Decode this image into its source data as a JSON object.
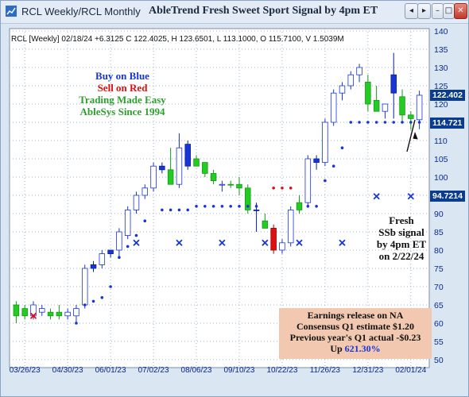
{
  "window": {
    "title": "RCL Weekly/RCL Monthly",
    "chart_title": "AbleTrend Fresh Sweet Sport Signal by 4pm ET",
    "controls": {
      "left": "◂",
      "right": "▸",
      "minimize": "–",
      "maximize": "□",
      "close": "✕"
    }
  },
  "info_line": "RCL [Weekly] 02/18/24  +6.3125 C 122.4025, H 123.6501, L 113.1000, O 115.7100, V 1.5039M",
  "ad": {
    "line1": "Buy on Blue",
    "line2": "Sell on Red",
    "line3": "Trading Made Easy",
    "line4": "AbleSys Since 1994"
  },
  "colors": {
    "blue": "#1a35d6",
    "red": "#e01010",
    "green": "#2e9e2e",
    "candle_up": "#ffffff",
    "candle_blue": "#1a35d6",
    "candle_red": "#e01010",
    "candle_green": "#22cc22"
  },
  "annotation": {
    "line1": "Fresh",
    "line2": "SSb signal",
    "line3": "by 4pm ET",
    "line4": "on 2/22/24"
  },
  "earnings": {
    "line1": "Earnings release on NA",
    "line2": "Consensus Q1 estimate $1.20",
    "line3": "Previous year's Q1 actual -$0.23",
    "line4_prefix": "Up ",
    "line4_value": "621.30%"
  },
  "price_tags": {
    "last": "122.402",
    "stop": "114.721",
    "x_level": "94.7214"
  },
  "chart_data": {
    "type": "candlestick",
    "symbol": "RCL",
    "period": "Weekly",
    "ylim": [
      50,
      140
    ],
    "y_ticks": [
      50,
      55,
      60,
      65,
      70,
      75,
      80,
      85,
      90,
      95,
      100,
      105,
      110,
      115,
      120,
      125,
      130,
      135,
      140
    ],
    "x_ticks": [
      "03/26/23",
      "04/30/23",
      "06/01/23",
      "07/02/23",
      "08/06/23",
      "09/10/23",
      "10/22/23",
      "11/26/23",
      "12/31/23",
      "02/01/24"
    ],
    "candles": [
      {
        "o": 62,
        "h": 66,
        "l": 60,
        "c": 65,
        "color": "green"
      },
      {
        "o": 64,
        "h": 65,
        "l": 61,
        "c": 62,
        "color": "green"
      },
      {
        "o": 62,
        "h": 66,
        "l": 61,
        "c": 65,
        "color": "white"
      },
      {
        "o": 64,
        "h": 65,
        "l": 62,
        "c": 63,
        "color": "white"
      },
      {
        "o": 62,
        "h": 64,
        "l": 61,
        "c": 63,
        "color": "green"
      },
      {
        "o": 63,
        "h": 65,
        "l": 61,
        "c": 62,
        "color": "green"
      },
      {
        "o": 62,
        "h": 64,
        "l": 61,
        "c": 63,
        "color": "white"
      },
      {
        "o": 64,
        "h": 65,
        "l": 60,
        "c": 62,
        "color": "white"
      },
      {
        "o": 65,
        "h": 76,
        "l": 64,
        "c": 75,
        "color": "white"
      },
      {
        "o": 75,
        "h": 77,
        "l": 74,
        "c": 76,
        "color": "blue"
      },
      {
        "o": 76,
        "h": 80,
        "l": 75,
        "c": 79,
        "color": "white"
      },
      {
        "o": 79,
        "h": 80,
        "l": 78,
        "c": 80,
        "color": "blue"
      },
      {
        "o": 80,
        "h": 86,
        "l": 78,
        "c": 85,
        "color": "white"
      },
      {
        "o": 84,
        "h": 92,
        "l": 83,
        "c": 91,
        "color": "white"
      },
      {
        "o": 91,
        "h": 96,
        "l": 90,
        "c": 95,
        "color": "white"
      },
      {
        "o": 95,
        "h": 98,
        "l": 94,
        "c": 97,
        "color": "white"
      },
      {
        "o": 97,
        "h": 104,
        "l": 96,
        "c": 103,
        "color": "white"
      },
      {
        "o": 103,
        "h": 104,
        "l": 101,
        "c": 102,
        "color": "blue"
      },
      {
        "o": 102,
        "h": 108,
        "l": 98,
        "c": 98,
        "color": "green"
      },
      {
        "o": 98,
        "h": 112,
        "l": 97,
        "c": 108,
        "color": "white"
      },
      {
        "o": 103,
        "h": 110,
        "l": 102,
        "c": 109,
        "color": "blue"
      },
      {
        "o": 105,
        "h": 106,
        "l": 103,
        "c": 103,
        "color": "green"
      },
      {
        "o": 104,
        "h": 104,
        "l": 100,
        "c": 101,
        "color": "green"
      },
      {
        "o": 101,
        "h": 102,
        "l": 98,
        "c": 99,
        "color": "green"
      },
      {
        "o": 98,
        "h": 99,
        "l": 96,
        "c": 98,
        "color": "white"
      },
      {
        "o": 98,
        "h": 99,
        "l": 97,
        "c": 98,
        "color": "green"
      },
      {
        "o": 98,
        "h": 100,
        "l": 95,
        "c": 97,
        "color": "green"
      },
      {
        "o": 97,
        "h": 98,
        "l": 90,
        "c": 91,
        "color": "green"
      },
      {
        "o": 91,
        "h": 93,
        "l": 85,
        "c": 91,
        "color": "blue"
      },
      {
        "o": 88,
        "h": 90,
        "l": 86,
        "c": 86,
        "color": "green"
      },
      {
        "o": 86,
        "h": 87,
        "l": 79,
        "c": 80,
        "color": "red"
      },
      {
        "o": 80,
        "h": 83,
        "l": 79,
        "c": 82,
        "color": "white"
      },
      {
        "o": 82,
        "h": 92,
        "l": 81,
        "c": 91,
        "color": "white"
      },
      {
        "o": 91,
        "h": 95,
        "l": 90,
        "c": 93,
        "color": "green"
      },
      {
        "o": 93,
        "h": 106,
        "l": 92,
        "c": 105,
        "color": "white"
      },
      {
        "o": 105,
        "h": 106,
        "l": 102,
        "c": 104,
        "color": "blue"
      },
      {
        "o": 104,
        "h": 116,
        "l": 103,
        "c": 115,
        "color": "white"
      },
      {
        "o": 115,
        "h": 124,
        "l": 114,
        "c": 123,
        "color": "white"
      },
      {
        "o": 123,
        "h": 126,
        "l": 121,
        "c": 125,
        "color": "white"
      },
      {
        "o": 125,
        "h": 129,
        "l": 124,
        "c": 128,
        "color": "white"
      },
      {
        "o": 128,
        "h": 131,
        "l": 126,
        "c": 130,
        "color": "white"
      },
      {
        "o": 126,
        "h": 128,
        "l": 118,
        "c": 120,
        "color": "green"
      },
      {
        "o": 121,
        "h": 125,
        "l": 118,
        "c": 118,
        "color": "green"
      },
      {
        "o": 118,
        "h": 120,
        "l": 116,
        "c": 120,
        "color": "white"
      },
      {
        "o": 128,
        "h": 134,
        "l": 116,
        "c": 123,
        "color": "blue"
      },
      {
        "o": 122,
        "h": 124,
        "l": 115,
        "c": 117,
        "color": "green"
      },
      {
        "o": 117,
        "h": 118,
        "l": 113,
        "c": 116,
        "color": "green"
      },
      {
        "o": 115.7,
        "h": 123.65,
        "l": 113.1,
        "c": 122.4,
        "color": "white"
      }
    ],
    "stop_dots": [
      {
        "i": 7,
        "v": 60
      },
      {
        "i": 8,
        "v": 65
      },
      {
        "i": 9,
        "v": 66
      },
      {
        "i": 10,
        "v": 67
      },
      {
        "i": 11,
        "v": 70
      },
      {
        "i": 12,
        "v": 78
      },
      {
        "i": 13,
        "v": 81
      },
      {
        "i": 14,
        "v": 84
      },
      {
        "i": 15,
        "v": 88
      },
      {
        "i": 17,
        "v": 91
      },
      {
        "i": 18,
        "v": 91
      },
      {
        "i": 19,
        "v": 91
      },
      {
        "i": 20,
        "v": 91
      },
      {
        "i": 21,
        "v": 92
      },
      {
        "i": 22,
        "v": 92
      },
      {
        "i": 23,
        "v": 92
      },
      {
        "i": 24,
        "v": 92
      },
      {
        "i": 25,
        "v": 92
      },
      {
        "i": 26,
        "v": 92
      },
      {
        "i": 27,
        "v": 92
      },
      {
        "i": 28,
        "v": 92
      },
      {
        "i": 30,
        "v": 97,
        "color": "red"
      },
      {
        "i": 31,
        "v": 97,
        "color": "red"
      },
      {
        "i": 32,
        "v": 97,
        "color": "red"
      },
      {
        "i": 34,
        "v": 92
      },
      {
        "i": 35,
        "v": 92
      },
      {
        "i": 36,
        "v": 99
      },
      {
        "i": 37,
        "v": 103
      },
      {
        "i": 38,
        "v": 108
      },
      {
        "i": 39,
        "v": 115
      },
      {
        "i": 40,
        "v": 115
      },
      {
        "i": 41,
        "v": 115
      },
      {
        "i": 42,
        "v": 115
      },
      {
        "i": 43,
        "v": 115
      },
      {
        "i": 44,
        "v": 115
      },
      {
        "i": 45,
        "v": 115
      },
      {
        "i": 46,
        "v": 115
      },
      {
        "i": 47,
        "v": 115
      }
    ],
    "x_marks": [
      {
        "i": 2,
        "v": 62,
        "color": "red"
      },
      {
        "i": 14,
        "v": 82,
        "color": "blue"
      },
      {
        "i": 19,
        "v": 82,
        "color": "blue"
      },
      {
        "i": 24,
        "v": 82,
        "color": "blue"
      },
      {
        "i": 29,
        "v": 82,
        "color": "blue"
      },
      {
        "i": 33,
        "v": 82,
        "color": "blue"
      },
      {
        "i": 38,
        "v": 82,
        "color": "blue"
      },
      {
        "i": 42,
        "v": 94.72,
        "color": "blue"
      },
      {
        "i": 46,
        "v": 94.72,
        "color": "blue"
      }
    ],
    "last_price": 122.402,
    "stop_level": 114.721,
    "x_level": 94.7214
  }
}
